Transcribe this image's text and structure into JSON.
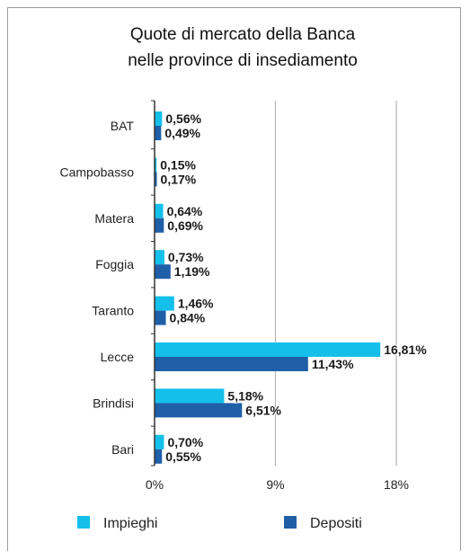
{
  "chart_data": {
    "type": "bar",
    "orientation": "horizontal",
    "title_lines": [
      "Quote di mercato della Banca",
      "nelle province di insediamento"
    ],
    "categories": [
      "BAT",
      "Campobasso",
      "Matera",
      "Foggia",
      "Taranto",
      "Lecce",
      "Brindisi",
      "Bari"
    ],
    "series": [
      {
        "name": "Impieghi",
        "color": "#14c0ea",
        "values": [
          0.56,
          0.15,
          0.64,
          0.73,
          1.46,
          16.81,
          5.18,
          0.7
        ],
        "labels": [
          "0,56%",
          "0,15%",
          "0,64%",
          "0,73%",
          "1,46%",
          "16,81%",
          "5,18%",
          "0,70%"
        ]
      },
      {
        "name": "Depositi",
        "color": "#1f5fa8",
        "values": [
          0.49,
          0.17,
          0.69,
          1.19,
          0.84,
          11.43,
          6.51,
          0.55
        ],
        "labels": [
          "0,49%",
          "0,17%",
          "0,69%",
          "1,19%",
          "0,84%",
          "11,43%",
          "6,51%",
          "0,55%"
        ]
      }
    ],
    "xlim": [
      0,
      18
    ],
    "xticks": [
      0,
      9,
      18
    ],
    "xtick_labels": [
      "0%",
      "9%",
      "18%"
    ],
    "gridlines": true,
    "legend_position": "bottom",
    "colors": {
      "grid": "#b5b5b5",
      "axis": "#333333"
    }
  }
}
